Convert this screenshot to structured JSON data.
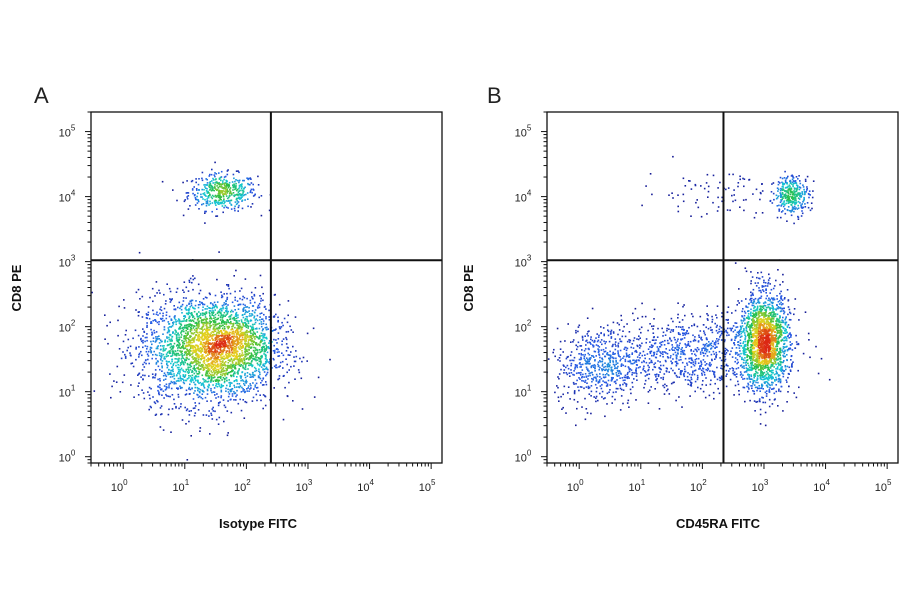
{
  "chart_data": [
    {
      "panel": "A",
      "type": "scatter",
      "subtype": "flow-cytometry-density-dot-plot",
      "xlabel": "Isotype FITC",
      "ylabel": "CD8 PE",
      "x_scale": "log",
      "y_scale": "log",
      "xlim": [
        0.3,
        150000
      ],
      "ylim": [
        0.8,
        200000
      ],
      "x_ticks": [
        1,
        10,
        100,
        1000,
        10000,
        100000
      ],
      "y_ticks": [
        1,
        10,
        100,
        1000,
        10000,
        100000
      ],
      "x_tick_labels": [
        {
          "base": "10",
          "exp": "0"
        },
        {
          "base": "10",
          "exp": "1"
        },
        {
          "base": "10",
          "exp": "2"
        },
        {
          "base": "10",
          "exp": "3"
        },
        {
          "base": "10",
          "exp": "4"
        },
        {
          "base": "10",
          "exp": "5"
        }
      ],
      "y_tick_labels": [
        {
          "base": "10",
          "exp": "0"
        },
        {
          "base": "10",
          "exp": "1"
        },
        {
          "base": "10",
          "exp": "2"
        },
        {
          "base": "10",
          "exp": "3"
        },
        {
          "base": "10",
          "exp": "4"
        },
        {
          "base": "10",
          "exp": "5"
        }
      ],
      "quadrant_gate": {
        "x": 250,
        "y": 1050
      },
      "grid": false,
      "clusters": [
        {
          "center": [
            40,
            12000
          ],
          "spread_log": [
            0.28,
            0.14
          ],
          "count": 450
        },
        {
          "center": [
            22,
            45
          ],
          "spread_log": [
            0.55,
            0.42
          ],
          "count": 2600
        },
        {
          "center": [
            70,
            60
          ],
          "spread_log": [
            0.35,
            0.3
          ],
          "count": 600
        }
      ]
    },
    {
      "panel": "B",
      "type": "scatter",
      "subtype": "flow-cytometry-density-dot-plot",
      "xlabel": "CD45RA FITC",
      "ylabel": "CD8 PE",
      "x_scale": "log",
      "y_scale": "log",
      "xlim": [
        0.3,
        150000
      ],
      "ylim": [
        0.8,
        200000
      ],
      "x_ticks": [
        1,
        10,
        100,
        1000,
        10000,
        100000
      ],
      "y_ticks": [
        1,
        10,
        100,
        1000,
        10000,
        100000
      ],
      "x_tick_labels": [
        {
          "base": "10",
          "exp": "0"
        },
        {
          "base": "10",
          "exp": "1"
        },
        {
          "base": "10",
          "exp": "2"
        },
        {
          "base": "10",
          "exp": "3"
        },
        {
          "base": "10",
          "exp": "4"
        },
        {
          "base": "10",
          "exp": "5"
        }
      ],
      "y_tick_labels": [
        {
          "base": "10",
          "exp": "0"
        },
        {
          "base": "10",
          "exp": "1"
        },
        {
          "base": "10",
          "exp": "2"
        },
        {
          "base": "10",
          "exp": "3"
        },
        {
          "base": "10",
          "exp": "4"
        },
        {
          "base": "10",
          "exp": "5"
        }
      ],
      "quadrant_gate": {
        "x": 220,
        "y": 1050
      },
      "grid": false,
      "clusters": [
        {
          "center": [
            2800,
            11000
          ],
          "spread_log": [
            0.14,
            0.15
          ],
          "count": 320
        },
        {
          "center": [
            180,
            12000
          ],
          "spread_log": [
            0.6,
            0.18
          ],
          "count": 90
        },
        {
          "center": [
            1000,
            60
          ],
          "spread_log": [
            0.2,
            0.38
          ],
          "count": 1800
        },
        {
          "center": [
            60,
            40
          ],
          "spread_log": [
            0.75,
            0.3
          ],
          "count": 900
        },
        {
          "center": [
            2,
            25
          ],
          "spread_log": [
            0.35,
            0.3
          ],
          "count": 500
        }
      ]
    }
  ]
}
